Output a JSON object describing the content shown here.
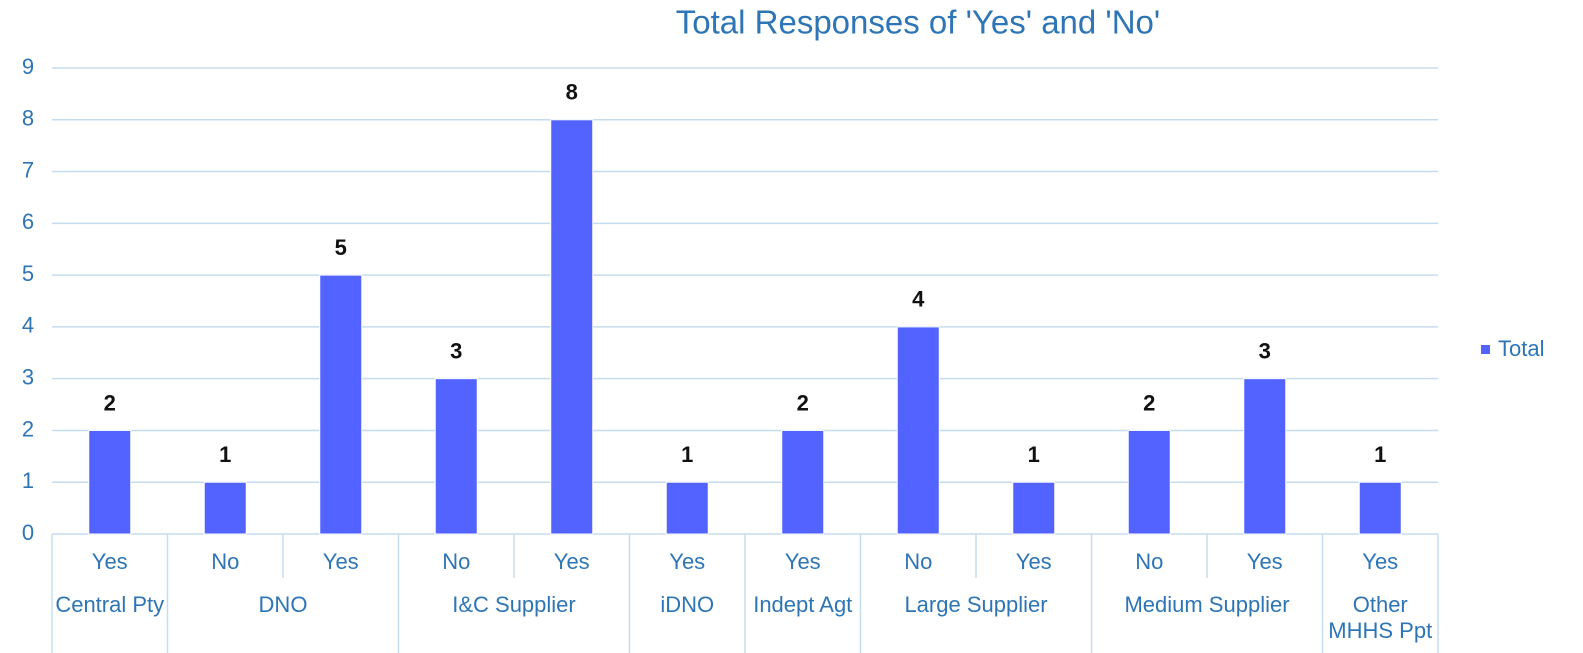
{
  "chart_data": {
    "type": "bar",
    "title": "Total Responses of 'Yes' and 'No'",
    "categories": [
      "Yes",
      "No",
      "Yes",
      "No",
      "Yes",
      "Yes",
      "Yes",
      "No",
      "Yes",
      "No",
      "Yes",
      "Yes"
    ],
    "groups": [
      {
        "label": "Central Pty",
        "span": 1
      },
      {
        "label": "DNO",
        "span": 2
      },
      {
        "label": "I&C Supplier",
        "span": 2
      },
      {
        "label": "iDNO",
        "span": 1
      },
      {
        "label": "Indept Agt",
        "span": 1
      },
      {
        "label": "Large Supplier",
        "span": 2
      },
      {
        "label": "Medium Supplier",
        "span": 2
      },
      {
        "label": "Other MHHS Ppt",
        "span": 1
      }
    ],
    "series": [
      {
        "name": "Total",
        "color": "#5263ff",
        "values": [
          2,
          1,
          5,
          3,
          8,
          1,
          2,
          4,
          1,
          2,
          3,
          1
        ]
      }
    ],
    "ylim": [
      0,
      9
    ],
    "yticks": [
      0,
      1,
      2,
      3,
      4,
      5,
      6,
      7,
      8,
      9
    ],
    "grid": true,
    "legend": "right"
  }
}
